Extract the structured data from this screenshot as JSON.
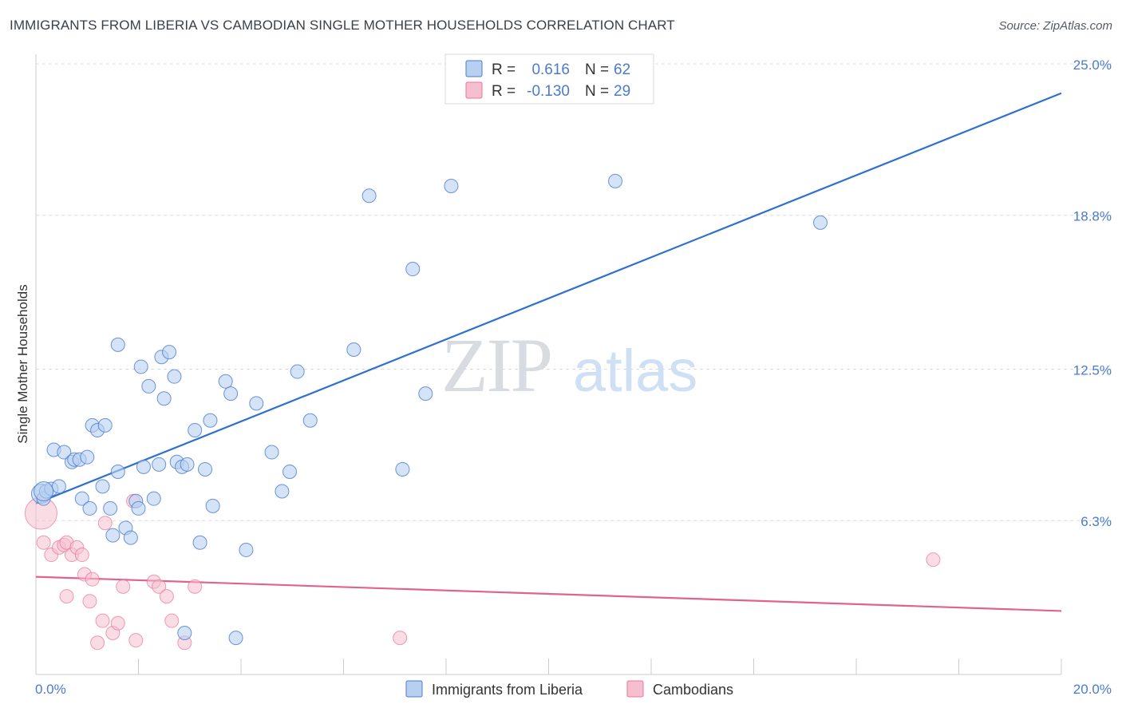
{
  "title": "IMMIGRANTS FROM LIBERIA VS CAMBODIAN SINGLE MOTHER HOUSEHOLDS CORRELATION CHART",
  "source": "Source: ZipAtlas.com",
  "watermark": {
    "zip": "ZIP",
    "atlas": "atlas"
  },
  "colors": {
    "blue": "#4a7bd0",
    "blue_fill": "#b8d0f0",
    "blue_line": "#2f6fd1",
    "pink": "#e9749b",
    "pink_fill": "#f6bfd0",
    "pink_line": "#e0628e",
    "grid": "#d9dce2"
  },
  "legend": {
    "rows": [
      {
        "r_label": "R =",
        "r_value": "0.616",
        "n_label": "N =",
        "n_value": "62"
      },
      {
        "r_label": "R =",
        "r_value": "-0.130",
        "n_label": "N =",
        "n_value": "29"
      }
    ]
  },
  "bottom_legend": [
    "Immigrants from Liberia",
    "Cambodians"
  ],
  "chart_data": {
    "type": "scatter",
    "title": "IMMIGRANTS FROM LIBERIA VS CAMBODIAN SINGLE MOTHER HOUSEHOLDS CORRELATION CHART",
    "xlabel": "",
    "ylabel": "Single Mother Households",
    "xlim": [
      0,
      20
    ],
    "ylim": [
      0,
      25.0
    ],
    "x_ticks": [
      "0.0%",
      "20.0%"
    ],
    "y_ticks": [
      {
        "value": 6.3,
        "label": "6.3%"
      },
      {
        "value": 12.5,
        "label": "12.5%"
      },
      {
        "value": 18.8,
        "label": "18.8%"
      },
      {
        "value": 25.0,
        "label": "25.0%"
      }
    ],
    "legend_position": "top-center",
    "series": [
      {
        "name": "Immigrants from Liberia",
        "r": 0.616,
        "n": 62,
        "trend": [
          [
            0,
            7.0
          ],
          [
            20,
            23.8
          ]
        ],
        "points": [
          [
            0.1,
            7.4
          ],
          [
            0.15,
            7.2
          ],
          [
            0.2,
            7.5
          ],
          [
            0.3,
            7.6
          ],
          [
            0.45,
            7.7
          ],
          [
            0.35,
            9.2
          ],
          [
            0.55,
            9.1
          ],
          [
            0.7,
            8.7
          ],
          [
            0.75,
            8.8
          ],
          [
            0.85,
            8.8
          ],
          [
            1.0,
            8.9
          ],
          [
            1.1,
            10.2
          ],
          [
            1.2,
            10.0
          ],
          [
            1.35,
            10.2
          ],
          [
            1.6,
            8.3
          ],
          [
            0.9,
            7.2
          ],
          [
            1.05,
            6.8
          ],
          [
            1.3,
            7.7
          ],
          [
            1.45,
            6.8
          ],
          [
            1.5,
            5.7
          ],
          [
            1.6,
            13.5
          ],
          [
            1.75,
            6.0
          ],
          [
            1.85,
            5.6
          ],
          [
            1.95,
            7.1
          ],
          [
            2.0,
            6.8
          ],
          [
            2.05,
            12.6
          ],
          [
            2.1,
            8.5
          ],
          [
            2.2,
            11.8
          ],
          [
            2.3,
            7.2
          ],
          [
            2.4,
            8.6
          ],
          [
            2.45,
            13.0
          ],
          [
            2.5,
            11.3
          ],
          [
            2.6,
            13.2
          ],
          [
            2.7,
            12.2
          ],
          [
            2.75,
            8.7
          ],
          [
            2.85,
            8.5
          ],
          [
            2.9,
            1.7
          ],
          [
            2.95,
            8.6
          ],
          [
            3.1,
            10.0
          ],
          [
            3.2,
            5.4
          ],
          [
            3.3,
            8.4
          ],
          [
            3.4,
            10.4
          ],
          [
            3.45,
            6.9
          ],
          [
            3.7,
            12.0
          ],
          [
            3.8,
            11.5
          ],
          [
            3.9,
            1.5
          ],
          [
            4.1,
            5.1
          ],
          [
            4.3,
            11.1
          ],
          [
            4.6,
            9.1
          ],
          [
            4.8,
            7.5
          ],
          [
            4.95,
            8.3
          ],
          [
            5.1,
            12.4
          ],
          [
            5.35,
            10.4
          ],
          [
            6.2,
            13.3
          ],
          [
            6.5,
            19.6
          ],
          [
            7.15,
            8.4
          ],
          [
            7.35,
            16.6
          ],
          [
            7.6,
            11.5
          ],
          [
            8.1,
            20.0
          ],
          [
            11.3,
            20.2
          ],
          [
            15.3,
            18.5
          ],
          [
            0.15,
            7.5
          ]
        ]
      },
      {
        "name": "Cambodians",
        "r": -0.13,
        "n": 29,
        "trend": [
          [
            0,
            4.0
          ],
          [
            20,
            2.6
          ]
        ],
        "points": [
          [
            0.1,
            6.6
          ],
          [
            0.15,
            5.4
          ],
          [
            0.3,
            4.9
          ],
          [
            0.45,
            5.2
          ],
          [
            0.55,
            5.3
          ],
          [
            0.6,
            5.4
          ],
          [
            0.6,
            3.2
          ],
          [
            0.7,
            4.9
          ],
          [
            0.8,
            5.2
          ],
          [
            0.9,
            4.9
          ],
          [
            0.95,
            4.1
          ],
          [
            1.05,
            3.0
          ],
          [
            1.1,
            3.9
          ],
          [
            1.2,
            1.3
          ],
          [
            1.3,
            2.2
          ],
          [
            1.35,
            6.2
          ],
          [
            1.5,
            1.7
          ],
          [
            1.6,
            2.1
          ],
          [
            1.7,
            3.6
          ],
          [
            1.9,
            7.1
          ],
          [
            1.95,
            1.4
          ],
          [
            2.3,
            3.8
          ],
          [
            2.4,
            3.6
          ],
          [
            2.55,
            3.2
          ],
          [
            2.65,
            2.2
          ],
          [
            2.9,
            1.3
          ],
          [
            3.1,
            3.6
          ],
          [
            7.1,
            1.5
          ],
          [
            17.5,
            4.7
          ]
        ]
      }
    ]
  }
}
